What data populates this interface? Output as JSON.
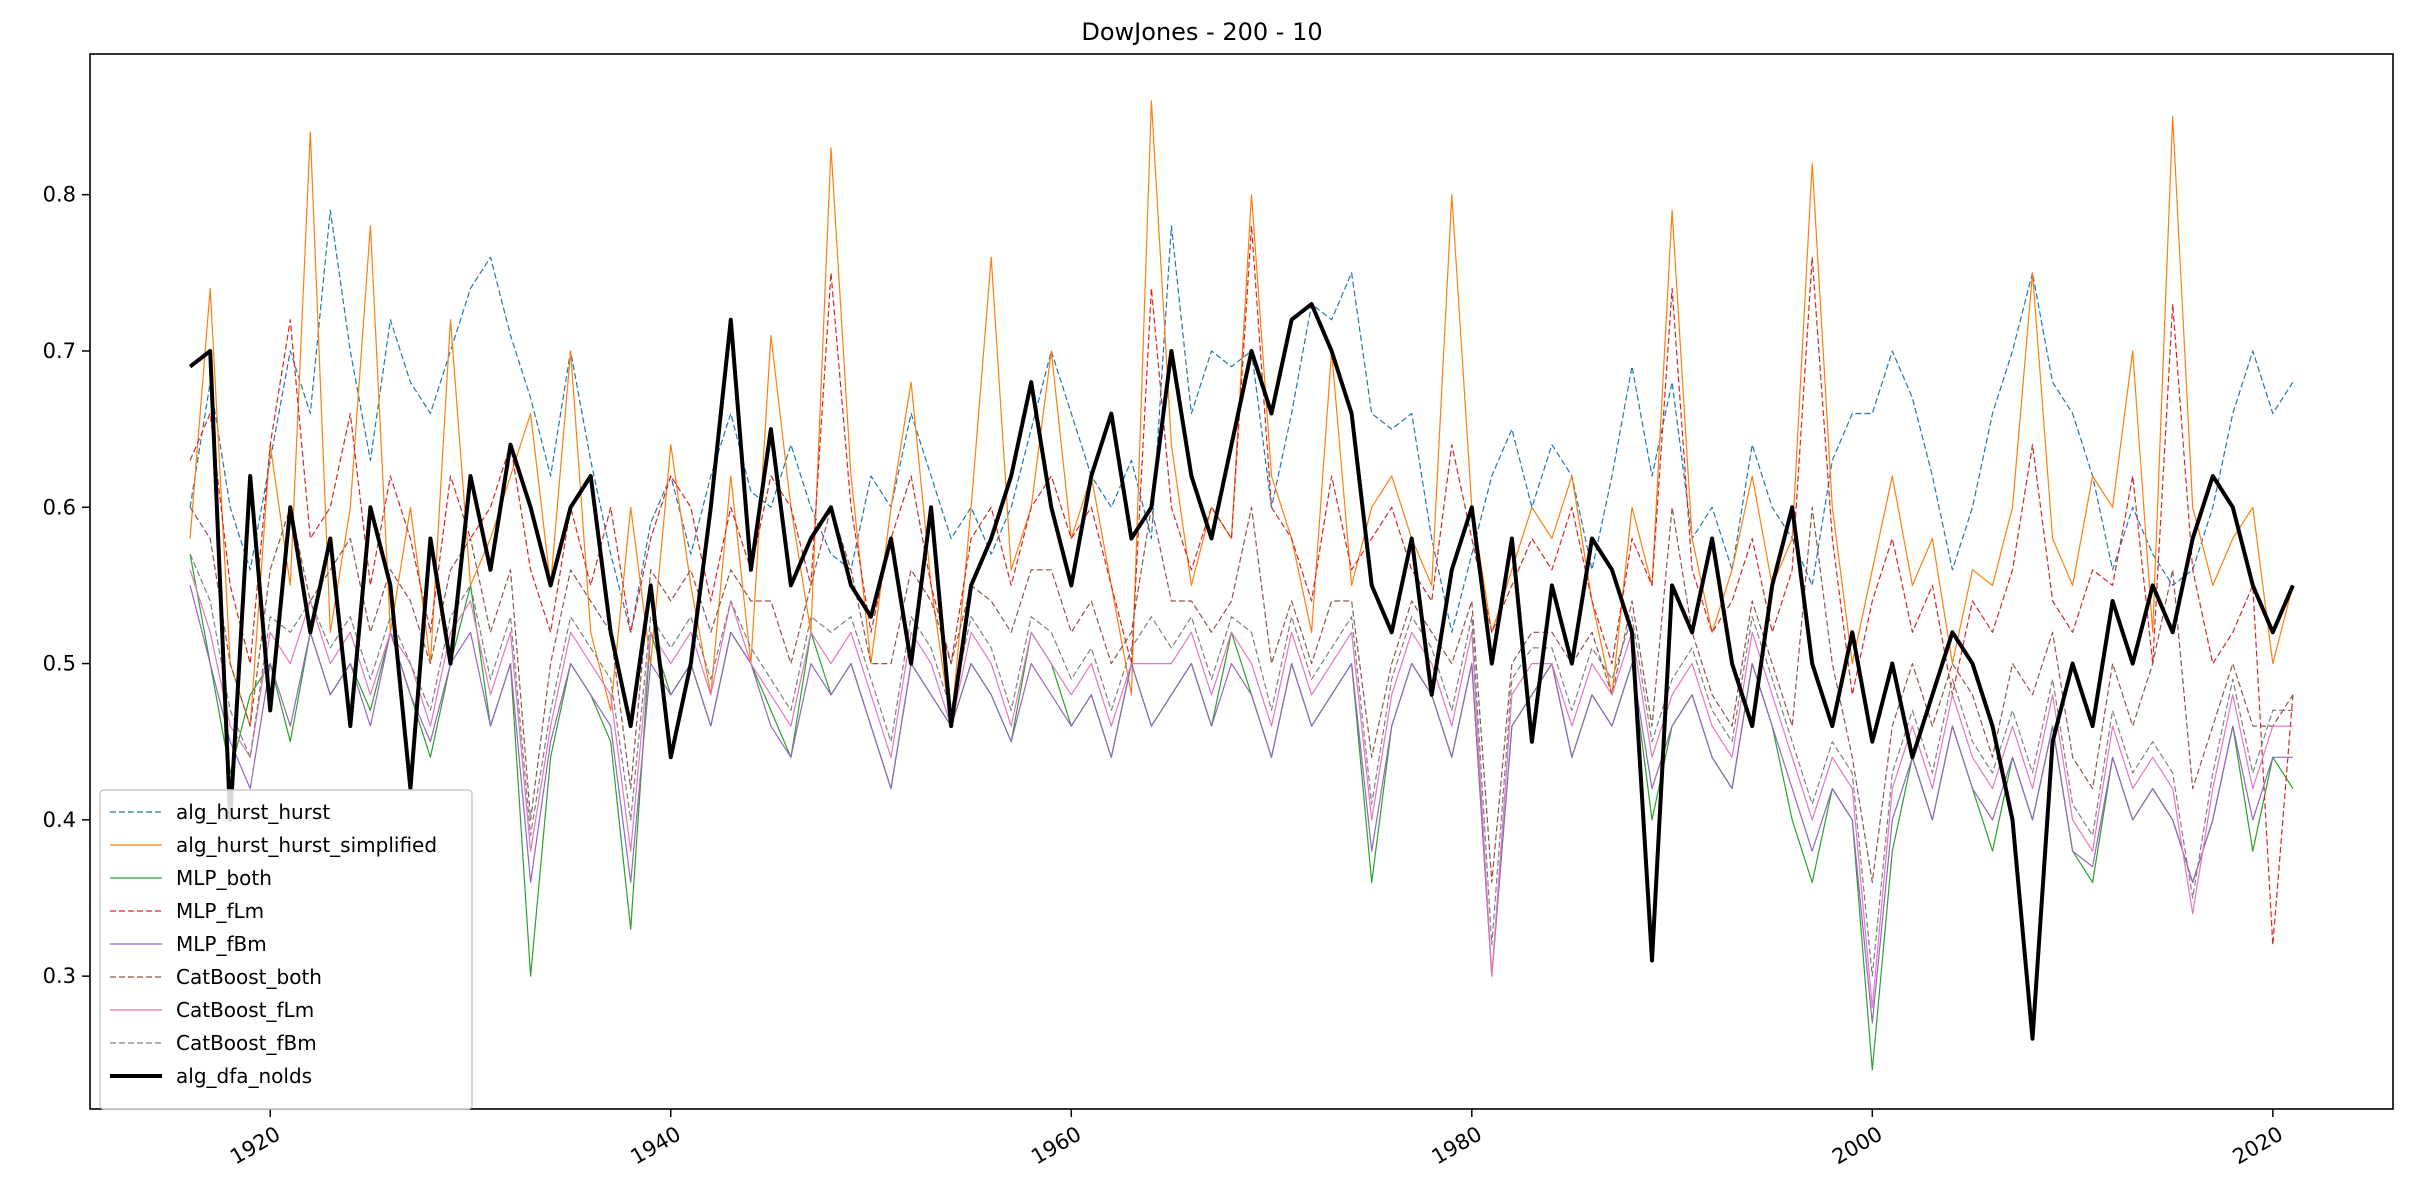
{
  "chart_data": {
    "type": "line",
    "title": "DowJones - 200 - 10",
    "xlabel": "",
    "ylabel": "",
    "xlim": [
      1911,
      2026
    ],
    "ylim": [
      0.215,
      0.89
    ],
    "x_ticks": [
      1920,
      1940,
      1960,
      1980,
      2000,
      2020
    ],
    "x_tick_labels": [
      "1920",
      "1940",
      "1960",
      "1980",
      "2000",
      "2020"
    ],
    "y_ticks": [
      0.3,
      0.4,
      0.5,
      0.6,
      0.7,
      0.8
    ],
    "y_tick_labels": [
      "0.3",
      "0.4",
      "0.5",
      "0.6",
      "0.7",
      "0.8"
    ],
    "grid": false,
    "legend_position": "lower-left",
    "x_range": [
      1916,
      2021
    ],
    "series": [
      {
        "name": "alg_hurst_hurst",
        "color": "#1f77b4",
        "style": "dashed",
        "width": 1.2,
        "values": [
          0.6,
          0.68,
          0.6,
          0.56,
          0.63,
          0.7,
          0.66,
          0.79,
          0.7,
          0.63,
          0.72,
          0.68,
          0.66,
          0.7,
          0.74,
          0.76,
          0.71,
          0.67,
          0.62,
          0.7,
          0.63,
          0.57,
          0.52,
          0.59,
          0.62,
          0.57,
          0.62,
          0.66,
          0.61,
          0.6,
          0.64,
          0.6,
          0.57,
          0.56,
          0.62,
          0.6,
          0.66,
          0.62,
          0.58,
          0.6,
          0.57,
          0.6,
          0.65,
          0.7,
          0.66,
          0.62,
          0.6,
          0.63,
          0.58,
          0.78,
          0.66,
          0.7,
          0.69,
          0.7,
          0.6,
          0.66,
          0.73,
          0.72,
          0.75,
          0.66,
          0.65,
          0.66,
          0.58,
          0.52,
          0.57,
          0.62,
          0.65,
          0.6,
          0.64,
          0.62,
          0.56,
          0.62,
          0.69,
          0.62,
          0.68,
          0.58,
          0.6,
          0.56,
          0.64,
          0.6,
          0.58,
          0.55,
          0.63,
          0.66,
          0.66,
          0.7,
          0.67,
          0.62,
          0.56,
          0.6,
          0.66,
          0.7,
          0.75,
          0.68,
          0.66,
          0.62,
          0.56,
          0.6,
          0.57,
          0.55,
          0.56,
          0.6,
          0.66,
          0.7,
          0.66,
          0.68
        ]
      },
      {
        "name": "alg_hurst_hurst_simplified",
        "color": "#ff7f0e",
        "style": "solid",
        "width": 1.2,
        "values": [
          0.58,
          0.74,
          0.5,
          0.46,
          0.64,
          0.55,
          0.84,
          0.52,
          0.6,
          0.78,
          0.52,
          0.6,
          0.5,
          0.72,
          0.55,
          0.58,
          0.62,
          0.66,
          0.55,
          0.7,
          0.52,
          0.47,
          0.6,
          0.5,
          0.64,
          0.55,
          0.48,
          0.62,
          0.5,
          0.71,
          0.6,
          0.52,
          0.83,
          0.62,
          0.5,
          0.6,
          0.68,
          0.55,
          0.46,
          0.6,
          0.76,
          0.56,
          0.6,
          0.7,
          0.58,
          0.62,
          0.55,
          0.48,
          0.86,
          0.64,
          0.55,
          0.6,
          0.58,
          0.8,
          0.62,
          0.58,
          0.52,
          0.7,
          0.55,
          0.6,
          0.62,
          0.58,
          0.55,
          0.8,
          0.6,
          0.52,
          0.56,
          0.6,
          0.58,
          0.62,
          0.54,
          0.48,
          0.6,
          0.55,
          0.79,
          0.58,
          0.52,
          0.56,
          0.62,
          0.55,
          0.58,
          0.82,
          0.6,
          0.5,
          0.56,
          0.62,
          0.55,
          0.58,
          0.5,
          0.56,
          0.55,
          0.6,
          0.75,
          0.58,
          0.55,
          0.62,
          0.6,
          0.7,
          0.52,
          0.85,
          0.6,
          0.55,
          0.58,
          0.6,
          0.5,
          0.55
        ]
      },
      {
        "name": "MLP_both",
        "color": "#2ca02c",
        "style": "solid",
        "width": 1.2,
        "values": [
          0.57,
          0.5,
          0.43,
          0.48,
          0.5,
          0.45,
          0.52,
          0.48,
          0.5,
          0.47,
          0.52,
          0.48,
          0.44,
          0.5,
          0.55,
          0.46,
          0.5,
          0.3,
          0.44,
          0.5,
          0.48,
          0.45,
          0.33,
          0.52,
          0.48,
          0.5,
          0.46,
          0.52,
          0.5,
          0.47,
          0.44,
          0.52,
          0.48,
          0.5,
          0.46,
          0.42,
          0.5,
          0.48,
          0.46,
          0.5,
          0.48,
          0.45,
          0.52,
          0.5,
          0.46,
          0.48,
          0.44,
          0.5,
          0.46,
          0.48,
          0.5,
          0.46,
          0.52,
          0.48,
          0.44,
          0.5,
          0.46,
          0.48,
          0.5,
          0.36,
          0.46,
          0.5,
          0.48,
          0.44,
          0.5,
          0.3,
          0.46,
          0.48,
          0.5,
          0.44,
          0.48,
          0.46,
          0.5,
          0.4,
          0.46,
          0.48,
          0.44,
          0.42,
          0.5,
          0.46,
          0.4,
          0.36,
          0.42,
          0.4,
          0.24,
          0.38,
          0.44,
          0.4,
          0.46,
          0.42,
          0.38,
          0.44,
          0.4,
          0.46,
          0.38,
          0.36,
          0.44,
          0.4,
          0.42,
          0.4,
          0.36,
          0.4,
          0.46,
          0.38,
          0.44,
          0.42
        ]
      },
      {
        "name": "MLP_fLm",
        "color": "#d62728",
        "style": "dashed",
        "width": 1.2,
        "values": [
          0.63,
          0.66,
          0.55,
          0.5,
          0.64,
          0.72,
          0.58,
          0.6,
          0.66,
          0.55,
          0.62,
          0.58,
          0.52,
          0.62,
          0.58,
          0.6,
          0.64,
          0.56,
          0.52,
          0.6,
          0.55,
          0.6,
          0.52,
          0.58,
          0.62,
          0.6,
          0.54,
          0.6,
          0.56,
          0.62,
          0.6,
          0.55,
          0.75,
          0.6,
          0.52,
          0.58,
          0.62,
          0.55,
          0.5,
          0.58,
          0.6,
          0.55,
          0.6,
          0.62,
          0.58,
          0.6,
          0.55,
          0.5,
          0.74,
          0.6,
          0.56,
          0.6,
          0.58,
          0.78,
          0.6,
          0.58,
          0.54,
          0.62,
          0.56,
          0.58,
          0.6,
          0.56,
          0.54,
          0.64,
          0.58,
          0.52,
          0.55,
          0.58,
          0.56,
          0.6,
          0.54,
          0.5,
          0.58,
          0.55,
          0.74,
          0.56,
          0.52,
          0.54,
          0.58,
          0.52,
          0.56,
          0.76,
          0.58,
          0.48,
          0.54,
          0.58,
          0.52,
          0.55,
          0.48,
          0.54,
          0.52,
          0.56,
          0.64,
          0.54,
          0.52,
          0.56,
          0.55,
          0.62,
          0.5,
          0.73,
          0.56,
          0.5,
          0.52,
          0.55,
          0.32,
          0.48
        ]
      },
      {
        "name": "MLP_fBm",
        "color": "#9467bd",
        "style": "solid",
        "width": 1.2,
        "values": [
          0.55,
          0.5,
          0.45,
          0.42,
          0.5,
          0.46,
          0.52,
          0.48,
          0.5,
          0.46,
          0.52,
          0.48,
          0.45,
          0.5,
          0.52,
          0.46,
          0.5,
          0.36,
          0.45,
          0.5,
          0.48,
          0.46,
          0.36,
          0.5,
          0.48,
          0.5,
          0.46,
          0.52,
          0.5,
          0.46,
          0.44,
          0.5,
          0.48,
          0.5,
          0.46,
          0.42,
          0.5,
          0.48,
          0.46,
          0.5,
          0.48,
          0.45,
          0.5,
          0.48,
          0.46,
          0.48,
          0.44,
          0.5,
          0.46,
          0.48,
          0.5,
          0.46,
          0.5,
          0.48,
          0.44,
          0.5,
          0.46,
          0.48,
          0.5,
          0.38,
          0.46,
          0.5,
          0.48,
          0.44,
          0.5,
          0.3,
          0.46,
          0.48,
          0.5,
          0.44,
          0.48,
          0.46,
          0.5,
          0.42,
          0.46,
          0.48,
          0.44,
          0.42,
          0.5,
          0.46,
          0.42,
          0.38,
          0.42,
          0.4,
          0.27,
          0.4,
          0.44,
          0.4,
          0.46,
          0.42,
          0.4,
          0.44,
          0.4,
          0.46,
          0.38,
          0.37,
          0.44,
          0.4,
          0.42,
          0.4,
          0.36,
          0.4,
          0.46,
          0.4,
          0.44,
          0.44
        ]
      },
      {
        "name": "CatBoost_both",
        "color": "#8c564b",
        "style": "dashed",
        "width": 1.2,
        "values": [
          0.6,
          0.58,
          0.5,
          0.46,
          0.56,
          0.6,
          0.54,
          0.56,
          0.58,
          0.52,
          0.56,
          0.54,
          0.5,
          0.56,
          0.58,
          0.52,
          0.56,
          0.4,
          0.5,
          0.56,
          0.54,
          0.52,
          0.42,
          0.56,
          0.54,
          0.56,
          0.52,
          0.56,
          0.54,
          0.54,
          0.5,
          0.55,
          0.6,
          0.56,
          0.5,
          0.5,
          0.56,
          0.54,
          0.5,
          0.55,
          0.54,
          0.52,
          0.56,
          0.56,
          0.52,
          0.54,
          0.5,
          0.52,
          0.6,
          0.54,
          0.54,
          0.52,
          0.54,
          0.6,
          0.5,
          0.54,
          0.5,
          0.54,
          0.54,
          0.44,
          0.5,
          0.54,
          0.52,
          0.5,
          0.54,
          0.36,
          0.5,
          0.52,
          0.52,
          0.5,
          0.52,
          0.48,
          0.54,
          0.46,
          0.6,
          0.52,
          0.48,
          0.46,
          0.54,
          0.5,
          0.46,
          0.6,
          0.5,
          0.44,
          0.36,
          0.46,
          0.5,
          0.46,
          0.5,
          0.48,
          0.44,
          0.5,
          0.48,
          0.52,
          0.44,
          0.42,
          0.5,
          0.46,
          0.5,
          0.56,
          0.42,
          0.46,
          0.5,
          0.46,
          0.46,
          0.48
        ]
      },
      {
        "name": "CatBoost_fLm",
        "color": "#e377c2",
        "style": "solid",
        "width": 1.2,
        "values": [
          0.56,
          0.52,
          0.46,
          0.44,
          0.52,
          0.5,
          0.54,
          0.5,
          0.52,
          0.48,
          0.52,
          0.5,
          0.46,
          0.52,
          0.54,
          0.48,
          0.52,
          0.38,
          0.46,
          0.52,
          0.5,
          0.48,
          0.38,
          0.52,
          0.5,
          0.52,
          0.48,
          0.54,
          0.5,
          0.48,
          0.46,
          0.52,
          0.5,
          0.52,
          0.48,
          0.44,
          0.52,
          0.5,
          0.46,
          0.52,
          0.5,
          0.46,
          0.52,
          0.5,
          0.48,
          0.5,
          0.46,
          0.5,
          0.5,
          0.5,
          0.52,
          0.48,
          0.52,
          0.5,
          0.46,
          0.52,
          0.48,
          0.5,
          0.52,
          0.4,
          0.48,
          0.52,
          0.5,
          0.46,
          0.52,
          0.3,
          0.48,
          0.5,
          0.5,
          0.46,
          0.5,
          0.48,
          0.52,
          0.44,
          0.48,
          0.5,
          0.46,
          0.44,
          0.52,
          0.48,
          0.44,
          0.4,
          0.44,
          0.42,
          0.28,
          0.42,
          0.46,
          0.42,
          0.48,
          0.44,
          0.42,
          0.46,
          0.42,
          0.48,
          0.4,
          0.38,
          0.46,
          0.42,
          0.44,
          0.42,
          0.34,
          0.42,
          0.48,
          0.42,
          0.46,
          0.46
        ]
      },
      {
        "name": "CatBoost_fBm",
        "color": "#7f7f7f",
        "style": "dashed",
        "width": 1.2,
        "values": [
          0.57,
          0.54,
          0.47,
          0.44,
          0.53,
          0.52,
          0.54,
          0.51,
          0.53,
          0.49,
          0.53,
          0.5,
          0.47,
          0.53,
          0.55,
          0.49,
          0.53,
          0.39,
          0.47,
          0.53,
          0.51,
          0.49,
          0.4,
          0.53,
          0.51,
          0.53,
          0.49,
          0.54,
          0.51,
          0.49,
          0.47,
          0.53,
          0.52,
          0.53,
          0.49,
          0.45,
          0.53,
          0.51,
          0.47,
          0.53,
          0.51,
          0.47,
          0.53,
          0.52,
          0.49,
          0.51,
          0.47,
          0.51,
          0.53,
          0.51,
          0.53,
          0.49,
          0.53,
          0.52,
          0.47,
          0.53,
          0.49,
          0.51,
          0.53,
          0.41,
          0.49,
          0.53,
          0.51,
          0.47,
          0.53,
          0.32,
          0.49,
          0.51,
          0.51,
          0.47,
          0.51,
          0.49,
          0.53,
          0.45,
          0.49,
          0.51,
          0.47,
          0.45,
          0.53,
          0.49,
          0.45,
          0.41,
          0.45,
          0.43,
          0.3,
          0.43,
          0.47,
          0.43,
          0.49,
          0.45,
          0.43,
          0.47,
          0.43,
          0.49,
          0.41,
          0.39,
          0.47,
          0.43,
          0.45,
          0.43,
          0.35,
          0.43,
          0.49,
          0.43,
          0.47,
          0.47
        ]
      },
      {
        "name": "alg_dfa_nolds",
        "color": "#000000",
        "style": "solid",
        "width": 4,
        "values": [
          0.69,
          0.7,
          0.4,
          0.62,
          0.47,
          0.6,
          0.52,
          0.58,
          0.46,
          0.6,
          0.55,
          0.42,
          0.58,
          0.5,
          0.62,
          0.56,
          0.64,
          0.6,
          0.55,
          0.6,
          0.62,
          0.52,
          0.46,
          0.55,
          0.44,
          0.5,
          0.6,
          0.72,
          0.56,
          0.65,
          0.55,
          0.58,
          0.6,
          0.55,
          0.53,
          0.58,
          0.5,
          0.6,
          0.46,
          0.55,
          0.58,
          0.62,
          0.68,
          0.6,
          0.55,
          0.62,
          0.66,
          0.58,
          0.6,
          0.7,
          0.62,
          0.58,
          0.64,
          0.7,
          0.66,
          0.72,
          0.73,
          0.7,
          0.66,
          0.55,
          0.52,
          0.58,
          0.48,
          0.56,
          0.6,
          0.5,
          0.58,
          0.45,
          0.55,
          0.5,
          0.58,
          0.56,
          0.52,
          0.31,
          0.55,
          0.52,
          0.58,
          0.5,
          0.46,
          0.55,
          0.6,
          0.5,
          0.46,
          0.52,
          0.45,
          0.5,
          0.44,
          0.48,
          0.52,
          0.5,
          0.46,
          0.4,
          0.26,
          0.45,
          0.5,
          0.46,
          0.54,
          0.5,
          0.55,
          0.52,
          0.58,
          0.62,
          0.6,
          0.55,
          0.52,
          0.55
        ]
      }
    ]
  }
}
